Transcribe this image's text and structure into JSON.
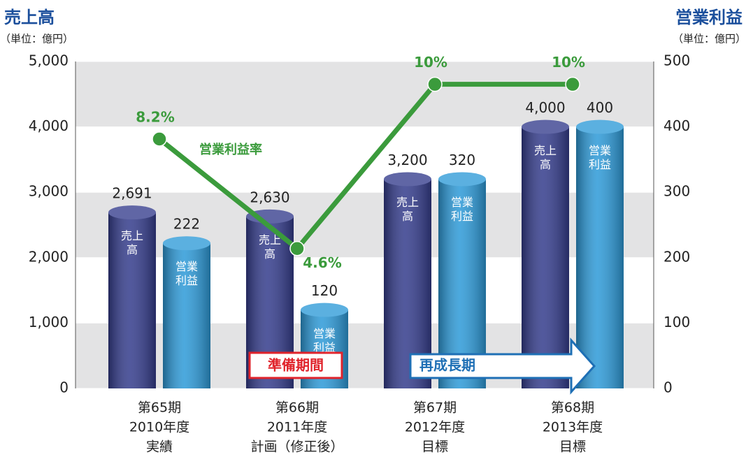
{
  "chart_data": {
    "type": "bar",
    "y_label": "売上高",
    "y_unit": "（単位：億円）",
    "y2_label": "営業利益",
    "y2_unit": "（単位：億円）",
    "categories": [
      [
        "第65期",
        "2010年度",
        "実績"
      ],
      [
        "第66期",
        "2011年度",
        "計画（修正後）"
      ],
      [
        "第67期",
        "2012年度",
        "目標"
      ],
      [
        "第68期",
        "2013年度",
        "目標"
      ]
    ],
    "series": [
      {
        "name": "売上高",
        "color": "#343c8c",
        "values": [
          2691,
          2630,
          3200,
          4000
        ],
        "value_labels": [
          "2,691",
          "2,630",
          "3,200",
          "4,000"
        ]
      },
      {
        "name": "営業利益",
        "color": "#2d9ad8",
        "axis": "y2",
        "values": [
          222,
          120,
          320,
          400
        ]
      },
      {
        "name": "営業利益率",
        "type": "line",
        "color": "#3b9b3c",
        "axis": "y3",
        "values": [
          8.2,
          4.6,
          10,
          10
        ],
        "value_labels": [
          "8.2%",
          "4.6%",
          "10%",
          "10%"
        ]
      }
    ],
    "ylim": [
      0,
      5000
    ],
    "yticks": [
      0,
      {
        "value": 1000,
        "label": "1,000"
      },
      {
        "value": 2000,
        "label": "2,000"
      },
      {
        "value": 3000,
        "label": "3,000"
      },
      {
        "value": 4000,
        "label": "4,000"
      },
      {
        "value": 5000,
        "label": "5,000"
      }
    ],
    "y2lim": [
      0,
      500
    ],
    "y2ticks": [
      0,
      100,
      200,
      300,
      400,
      500
    ],
    "y3lim": [
      0,
      10.75
    ],
    "annotations": [
      {
        "text": "準備期間",
        "color": "#e0232b"
      },
      {
        "text": "再成長期",
        "color": "#1e6fb5"
      }
    ]
  }
}
